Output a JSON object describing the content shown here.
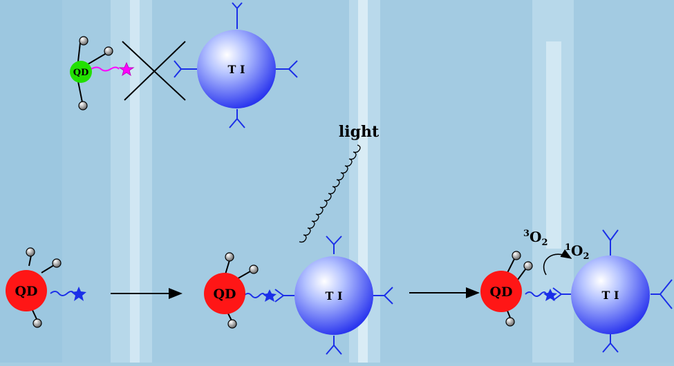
{
  "labels": {
    "top_qd": "QD",
    "top_target": "T I",
    "light": "light",
    "qd_1": "QD",
    "qd_2": "QD",
    "target_2": "T I",
    "qd_3": "QD",
    "target_3": "T I",
    "triplet_sup": "3",
    "triplet_base": "O",
    "triplet_sub": "2",
    "singlet_sup": "1",
    "singlet_base": "O",
    "singlet_sub": "2"
  },
  "colors": {
    "qd_green": "#22e000",
    "qd_red": "#ff1616",
    "target_blue": "#2a35ee",
    "linker_magenta": "#ff00ff",
    "linker_blue": "#1b2fe8",
    "arrow": "#000000"
  },
  "icons": {
    "quantum_dot": "sphere",
    "target": "sphere-with-receptors",
    "ligand": "ball-on-stick",
    "light": "wavy-line",
    "blocked": "x-mark"
  }
}
